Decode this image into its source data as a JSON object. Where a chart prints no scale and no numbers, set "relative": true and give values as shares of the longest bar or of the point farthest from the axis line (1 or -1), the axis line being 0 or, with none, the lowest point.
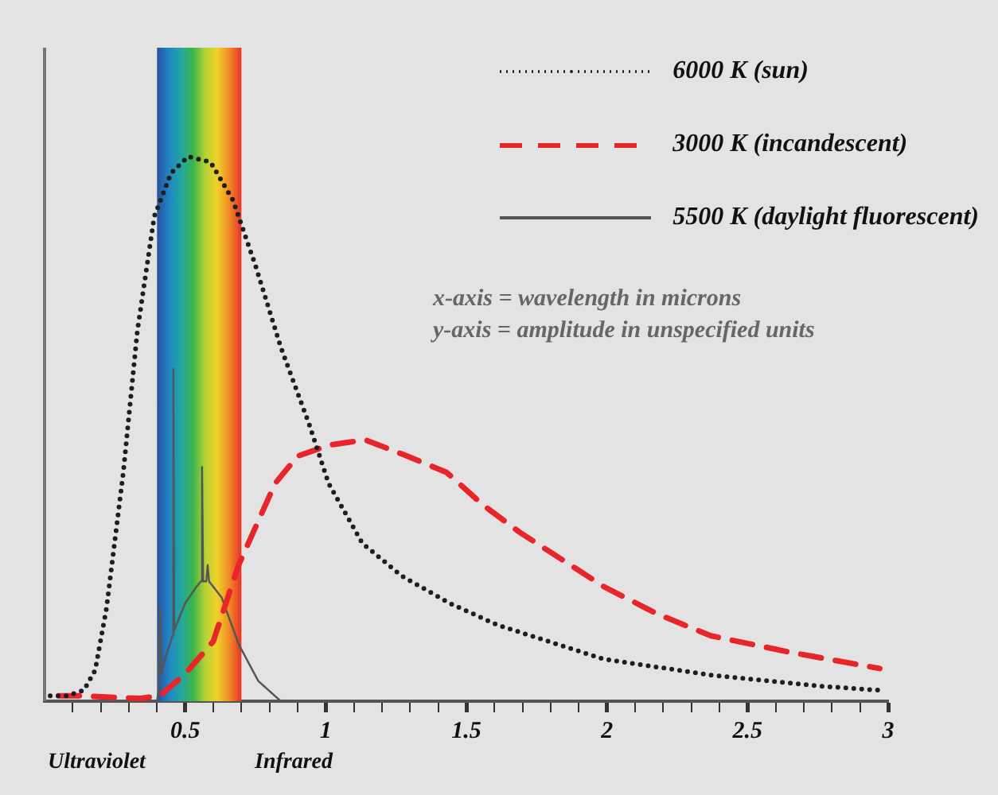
{
  "chart_data": {
    "type": "line",
    "relative": true,
    "marker": "none",
    "legend": "top right",
    "xlim": [
      0,
      3
    ],
    "xticks": [
      {
        "value": 0.1,
        "label": null
      },
      {
        "value": 0.2,
        "label": null
      },
      {
        "value": 0.3,
        "label": null
      },
      {
        "value": 0.4,
        "label": null
      },
      0.5,
      {
        "value": 0.6,
        "label": null
      },
      {
        "value": 0.7,
        "label": null
      },
      {
        "value": 0.8,
        "label": null
      },
      {
        "value": 0.9,
        "label": null
      },
      1,
      {
        "value": 1.1,
        "label": null
      },
      {
        "value": 1.2,
        "label": null
      },
      {
        "value": 1.3,
        "label": null
      },
      {
        "value": 1.4,
        "label": null
      },
      1.5,
      {
        "value": 1.6,
        "label": null
      },
      {
        "value": 1.7,
        "label": null
      },
      {
        "value": 1.8,
        "label": null
      },
      {
        "value": 1.9,
        "label": null
      },
      2,
      {
        "value": 2.1,
        "label": null
      },
      {
        "value": 2.2,
        "label": null
      },
      {
        "value": 2.3,
        "label": null
      },
      {
        "value": 2.4,
        "label": null
      },
      2.5,
      {
        "value": 2.6,
        "label": null
      },
      {
        "value": 2.7,
        "label": null
      },
      {
        "value": 2.8,
        "label": null
      },
      {
        "value": 2.9,
        "label": null
      },
      3
    ],
    "bands": [
      {
        "axis": "x",
        "from": 0.4,
        "to": 0.7
      }
    ],
    "annotations": [
      "x-axis = wavelength in microns",
      "y-axis = amplitude in unspecified units",
      "Ultraviolet",
      "Infrared"
    ],
    "series": [
      {
        "name": "6000 K (sun)",
        "color": "#1e1e1e",
        "line_style": "dotted",
        "x": [
          0.02,
          0.08,
          0.14,
          0.18,
          0.22,
          0.28,
          0.33,
          0.39,
          0.45,
          0.51,
          0.59,
          0.67,
          0.75,
          0.84,
          0.94,
          1.01,
          1.13,
          1.27,
          1.44,
          1.61,
          1.99,
          2.37,
          2.75,
          2.97
        ],
        "values": [
          0.01,
          0.01,
          0.02,
          0.057,
          0.17,
          0.42,
          0.68,
          0.89,
          0.97,
          1,
          0.99,
          0.92,
          0.8,
          0.65,
          0.51,
          0.4,
          0.29,
          0.23,
          0.18,
          0.14,
          0.077,
          0.048,
          0.028,
          0.02
        ]
      },
      {
        "name": "3000 K (incandescent)",
        "color": "#e8262a",
        "line_style": "dashed",
        "x": [
          0.05,
          0.12,
          0.34,
          0.41,
          0.5,
          0.6,
          0.69,
          0.82,
          0.9,
          1.01,
          1.14,
          1.29,
          1.43,
          1.56,
          1.69,
          1.84,
          1.99,
          2.18,
          2.37,
          2.65,
          2.97
        ],
        "values": [
          0.01,
          0.01,
          0.005,
          0.01,
          0.05,
          0.11,
          0.25,
          0.4,
          0.45,
          0.47,
          0.48,
          0.45,
          0.42,
          0.36,
          0.31,
          0.26,
          0.21,
          0.16,
          0.12,
          0.09,
          0.06
        ]
      },
      {
        "name": "5500 K (daylight fluorescent)",
        "color": "#555555",
        "line_style": "solid",
        "x": [
          0.4,
          0.405,
          0.41,
          0.415,
          0.43,
          0.455,
          0.458,
          0.461,
          0.5,
          0.54,
          0.556,
          0.56,
          0.564,
          0.575,
          0.58,
          0.585,
          0.63,
          0.69,
          0.76,
          0.84
        ],
        "values": [
          0,
          0.02,
          0.17,
          0.05,
          0.08,
          0.12,
          0.61,
          0.13,
          0.18,
          0.21,
          0.22,
          0.43,
          0.22,
          0.22,
          0.25,
          0.22,
          0.19,
          0.105,
          0.037,
          0
        ]
      }
    ]
  }
}
